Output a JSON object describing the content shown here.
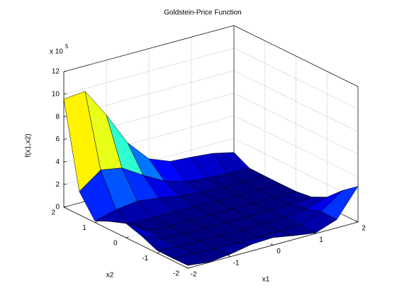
{
  "chart_data": {
    "type": "surface",
    "title": "Goldstein-Price Function",
    "xlabel": "x1",
    "ylabel": "x2",
    "zlabel": "f(x1,x2)",
    "z_scale_label": {
      "text": "x 10",
      "exponent": "5"
    },
    "colormap": "jet",
    "grid": true,
    "x": [
      -2,
      -1.5,
      -1,
      -0.5,
      0,
      0.5,
      1,
      1.5,
      2
    ],
    "y": [
      -2,
      -1.5,
      -1,
      -0.5,
      0,
      0.5,
      1,
      1.5,
      2
    ],
    "z": [
      [
        0.244,
        0.02,
        0.219,
        0.585,
        0.666,
        0.333,
        0.053,
        0.731,
        3.166
      ],
      [
        0.214,
        0.112,
        0.016,
        0.009,
        0.021,
        0.007,
        0.135,
        0.757,
        2.127
      ],
      [
        0.237,
        0.049,
        0.021,
        0.003,
        3e-05,
        0.005,
        0.071,
        0.33,
        0.867
      ],
      [
        0.839,
        0.084,
        0.005,
        0.0003,
        0.002,
        0.002,
        0.004,
        0.055,
        0.202
      ],
      [
        1.266,
        0.11,
        0.003,
        0.005,
        0.006,
        0.01,
        0.007,
        0.001,
        0.017
      ],
      [
        0.759,
        0.031,
        0.107,
        0.102,
        0.041,
        0.012,
        0.01,
        0.009,
        0.003
      ],
      [
        0.136,
        0.617,
        0.871,
        0.626,
        0.286,
        0.085,
        0.019,
        0.01,
        0.023
      ],
      [
        2.062,
        3.457,
        3.129,
        1.974,
        0.946,
        0.388,
        0.177,
        0.091,
        0.051
      ],
      [
        9.566,
        9.749,
        7.149,
        4.175,
        2.246,
        1.511,
        1.372,
        1.194,
        0.767
      ]
    ],
    "xlim": [
      -2,
      2
    ],
    "xticks": [
      -2,
      -1,
      0,
      1,
      2
    ],
    "ylim": [
      -2,
      2
    ],
    "yticks": [
      -2,
      -1,
      0,
      1,
      2
    ],
    "zlim": [
      0,
      12
    ],
    "zticks": [
      0,
      2,
      4,
      6,
      8,
      10,
      12
    ]
  }
}
